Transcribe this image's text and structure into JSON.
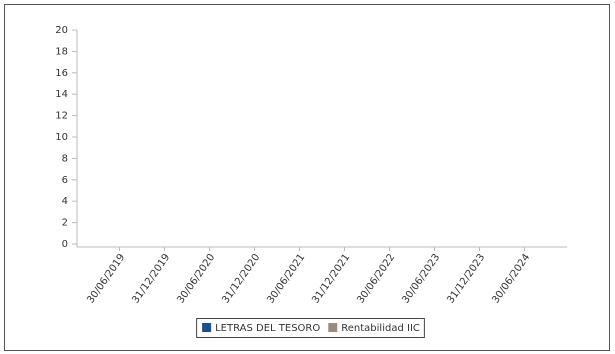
{
  "chart_data": {
    "type": "line",
    "categories": [
      "30/06/2019",
      "31/12/2019",
      "30/06/2020",
      "31/12/2020",
      "30/06/2021",
      "31/12/2021",
      "30/06/2022",
      "30/06/2023",
      "31/12/2023",
      "30/06/2024"
    ],
    "series": [
      {
        "name": "LETRAS DEL TESORO",
        "color": "#1f4e8c",
        "values": [
          null,
          null,
          null,
          null,
          null,
          null,
          null,
          null,
          null,
          null
        ]
      },
      {
        "name": "Rentabilidad IIC",
        "color": "#9a8a80",
        "values": [
          null,
          null,
          null,
          null,
          null,
          null,
          null,
          null,
          null,
          null
        ]
      }
    ],
    "ylim": [
      0,
      20
    ],
    "yticks": [
      0,
      2,
      4,
      6,
      8,
      10,
      12,
      14,
      16,
      18,
      20
    ],
    "legend": "bottom"
  }
}
